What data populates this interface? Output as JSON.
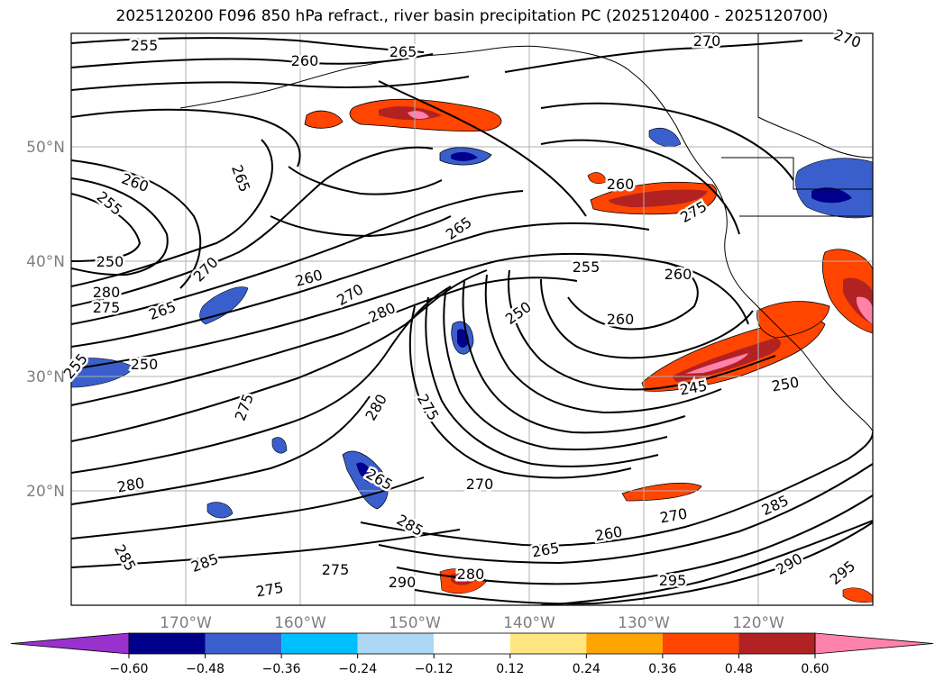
{
  "title": "2025120200 F096 850 hPa refract., river basin precipitation PC (2025120400 - 2025120700)",
  "map": {
    "lat_labels": [
      "50°N",
      "40°N",
      "30°N",
      "20°N"
    ],
    "lon_labels": [
      "170°W",
      "160°W",
      "150°W",
      "140°W",
      "130°W",
      "120°W"
    ],
    "contour_labels": [
      {
        "text": "255"
      },
      {
        "text": "260"
      },
      {
        "text": "265"
      },
      {
        "text": "270"
      },
      {
        "text": "270"
      },
      {
        "text": "260"
      },
      {
        "text": "265"
      },
      {
        "text": "255"
      },
      {
        "text": "250"
      },
      {
        "text": "280"
      },
      {
        "text": "275"
      },
      {
        "text": "265"
      },
      {
        "text": "270"
      },
      {
        "text": "260"
      },
      {
        "text": "270"
      },
      {
        "text": "280"
      },
      {
        "text": "265"
      },
      {
        "text": "255"
      },
      {
        "text": "260"
      },
      {
        "text": "250"
      },
      {
        "text": "260"
      },
      {
        "text": "260"
      },
      {
        "text": "275"
      },
      {
        "text": "250"
      },
      {
        "text": "255"
      },
      {
        "text": "275"
      },
      {
        "text": "280"
      },
      {
        "text": "275"
      },
      {
        "text": "245"
      },
      {
        "text": "250"
      },
      {
        "text": "280"
      },
      {
        "text": "265"
      },
      {
        "text": "270"
      },
      {
        "text": "285"
      },
      {
        "text": "285"
      },
      {
        "text": "285"
      },
      {
        "text": "275"
      },
      {
        "text": "275"
      },
      {
        "text": "290"
      },
      {
        "text": "280"
      },
      {
        "text": "265"
      },
      {
        "text": "260"
      },
      {
        "text": "270"
      },
      {
        "text": "295"
      },
      {
        "text": "290"
      },
      {
        "text": "285"
      },
      {
        "text": "295"
      }
    ]
  },
  "colorbar": {
    "ticks": [
      "−0.60",
      "−0.48",
      "−0.36",
      "−0.24",
      "−0.12",
      "0.12",
      "0.24",
      "0.36",
      "0.48",
      "0.60"
    ],
    "colors": [
      "#9932cc",
      "#00008b",
      "#3a5fcd",
      "#00bfff",
      "#add8f5",
      "#ffffff",
      "#ffe680",
      "#ffa500",
      "#ff4500",
      "#b22222",
      "#ff82ab"
    ]
  }
}
